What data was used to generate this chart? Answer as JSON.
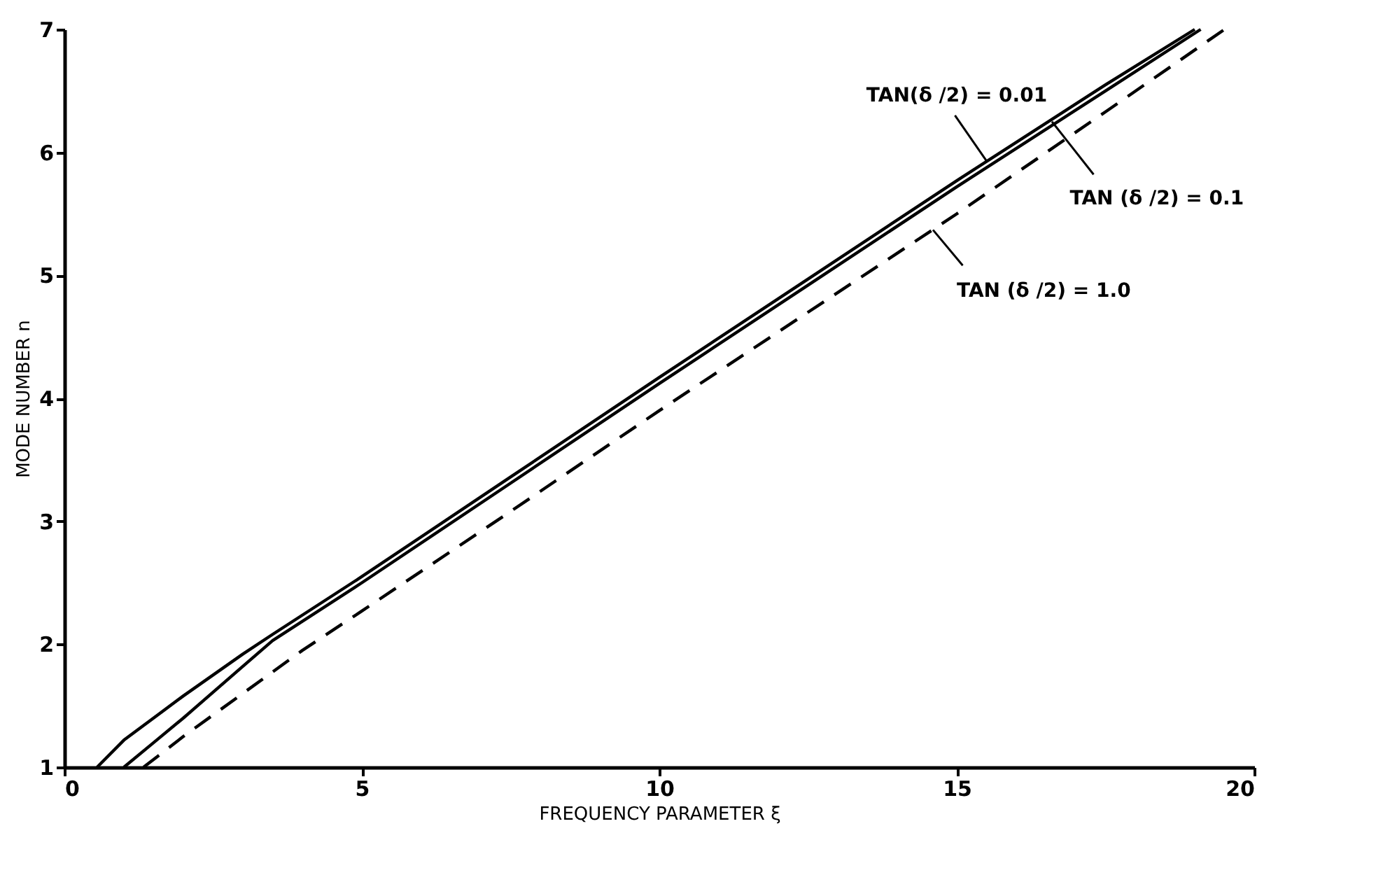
{
  "chart_data": {
    "type": "line",
    "xlabel": "FREQUENCY PARAMETER  ξ",
    "ylabel": "MODE NUMBER n",
    "xlim": [
      0,
      20
    ],
    "xticks": [
      0,
      5,
      10,
      15,
      20
    ],
    "ylim": [
      1,
      7
    ],
    "yticks": [
      1,
      2,
      3,
      4,
      5,
      6,
      7
    ],
    "grid": false,
    "series": [
      {
        "color": "#000000",
        "line_style": "solid",
        "x": [
          0.55,
          1,
          2,
          3,
          3.5,
          5,
          7.5,
          10,
          12.5,
          15,
          17.5,
          19.0
        ],
        "values": [
          1,
          1.22,
          1.58,
          1.92,
          2.08,
          2.55,
          3.36,
          4.17,
          4.97,
          5.77,
          6.55,
          7.0
        ]
      },
      {
        "color": "#000000",
        "line_style": "solid",
        "x": [
          1.0,
          1.5,
          2,
          3,
          3.5,
          5,
          7.5,
          10,
          12.5,
          15,
          17.5,
          19.1
        ],
        "values": [
          1,
          1.2,
          1.4,
          1.82,
          2.03,
          2.5,
          3.31,
          4.12,
          4.92,
          5.72,
          6.5,
          7.0
        ]
      },
      {
        "color": "#000000",
        "line_style": "dashed",
        "x": [
          1.33,
          2,
          3,
          4,
          5,
          7.5,
          10,
          12.5,
          15,
          17.5,
          19.5
        ],
        "values": [
          1,
          1.25,
          1.6,
          1.95,
          2.27,
          3.08,
          3.9,
          4.7,
          5.5,
          6.33,
          7.0
        ]
      }
    ],
    "annotations": [
      {
        "text": "TAN(δ /2) = 0.01",
        "x": 15.5,
        "y": 5.93
      },
      {
        "text": "TAN (δ /2) = 0.1",
        "x": 16.6,
        "y": 6.25
      },
      {
        "text": "TAN (δ /2) = 1.0",
        "x": 14.6,
        "y": 5.37
      }
    ]
  }
}
